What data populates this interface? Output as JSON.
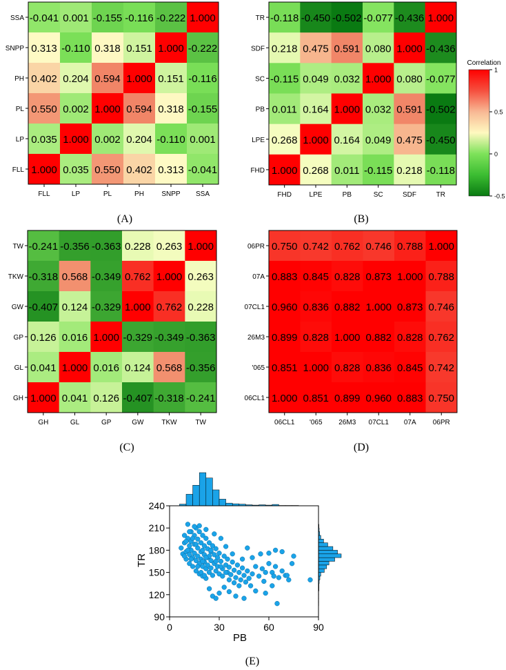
{
  "colors": {
    "scale_min": "#0a7a12",
    "scale_low": "#7ee25a",
    "scale_zero": "#ffffc8",
    "scale_high": "#f07a5e",
    "scale_max": "#ff0000",
    "scatter_point": "#1aa3e8",
    "histogram": "#1aa3e8"
  },
  "colorbar": {
    "title": "Correlation",
    "ticks": [
      "1",
      "0.5",
      "0",
      "-0.5"
    ],
    "tick_values": [
      1,
      0.5,
      0,
      -0.5
    ]
  },
  "chart_data": [
    {
      "type": "heatmap",
      "id": "A",
      "caption": "(A)",
      "x_labels": [
        "FLL",
        "LP",
        "PL",
        "PH",
        "SNPP",
        "SSA"
      ],
      "y_labels_top_to_bottom": [
        "SSA",
        "SNPP",
        "PH",
        "PL",
        "LP",
        "FLL"
      ],
      "values": [
        [
          "-0.041",
          "0.001",
          "-0.155",
          "-0.116",
          "-0.222",
          "1.000"
        ],
        [
          "0.313",
          "-0.110",
          "0.318",
          "0.151",
          "1.000",
          "-0.222"
        ],
        [
          "0.402",
          "0.204",
          "0.594",
          "1.000",
          "0.151",
          "-0.116"
        ],
        [
          "0.550",
          "0.002",
          "1.000",
          "0.594",
          "0.318",
          "-0.155"
        ],
        [
          "0.035",
          "1.000",
          "0.002",
          "0.204",
          "-0.110",
          "0.001"
        ],
        [
          "1.000",
          "0.035",
          "0.550",
          "0.402",
          "0.313",
          "-0.041"
        ]
      ]
    },
    {
      "type": "heatmap",
      "id": "B",
      "caption": "(B)",
      "x_labels": [
        "FHD",
        "LPE",
        "PB",
        "SC",
        "SDF",
        "TR"
      ],
      "y_labels_top_to_bottom": [
        "TR",
        "SDF",
        "SC",
        "PB",
        "LPE",
        "FHD"
      ],
      "values": [
        [
          "-0.118",
          "-0.450",
          "-0.502",
          "-0.077",
          "-0.436",
          "1.000"
        ],
        [
          "0.218",
          "0.475",
          "0.591",
          "0.080",
          "1.000",
          "-0.436"
        ],
        [
          "-0.115",
          "0.049",
          "0.032",
          "1.000",
          "0.080",
          "-0.077"
        ],
        [
          "0.011",
          "0.164",
          "1.000",
          "0.032",
          "0.591",
          "-0.502"
        ],
        [
          "0.268",
          "1.000",
          "0.164",
          "0.049",
          "0.475",
          "-0.450"
        ],
        [
          "1.000",
          "0.268",
          "0.011",
          "-0.115",
          "0.218",
          "-0.118"
        ]
      ]
    },
    {
      "type": "heatmap",
      "id": "C",
      "caption": "(C)",
      "x_labels": [
        "GH",
        "GL",
        "GP",
        "GW",
        "TKW",
        "TW"
      ],
      "y_labels_top_to_bottom": [
        "TW",
        "TKW",
        "GW",
        "GP",
        "GL",
        "GH"
      ],
      "values": [
        [
          "-0.241",
          "-0.356",
          "-0.363",
          "0.228",
          "0.263",
          "1.000"
        ],
        [
          "-0.318",
          "0.568",
          "-0.349",
          "0.762",
          "1.000",
          "0.263"
        ],
        [
          "-0.407",
          "0.124",
          "-0.329",
          "1.000",
          "0.762",
          "0.228"
        ],
        [
          "0.126",
          "0.016",
          "1.000",
          "-0.329",
          "-0.349",
          "-0.363"
        ],
        [
          "0.041",
          "1.000",
          "0.016",
          "0.124",
          "0.568",
          "-0.356"
        ],
        [
          "1.000",
          "0.041",
          "0.126",
          "-0.407",
          "-0.318",
          "-0.241"
        ]
      ]
    },
    {
      "type": "heatmap",
      "id": "D",
      "caption": "(D)",
      "x_labels": [
        "06CL1",
        "'065",
        "26M3",
        "07CL1",
        "07A",
        "06PR"
      ],
      "y_labels_top_to_bottom": [
        "06PR",
        "07A",
        "07CL1",
        "26M3",
        "'065",
        "06CL1"
      ],
      "values": [
        [
          "0.750",
          "0.742",
          "0.762",
          "0.746",
          "0.788",
          "1.000"
        ],
        [
          "0.883",
          "0.845",
          "0.828",
          "0.873",
          "1.000",
          "0.788"
        ],
        [
          "0.960",
          "0.836",
          "0.882",
          "1.000",
          "0.873",
          "0.746"
        ],
        [
          "0.899",
          "0.828",
          "1.000",
          "0.882",
          "0.828",
          "0.762"
        ],
        [
          "0.851",
          "1.000",
          "0.828",
          "0.836",
          "0.845",
          "0.742"
        ],
        [
          "1.000",
          "0.851",
          "0.899",
          "0.960",
          "0.883",
          "0.750"
        ]
      ]
    },
    {
      "type": "scatter",
      "id": "E",
      "caption": "(E)",
      "xlabel": "PB",
      "ylabel": "TR",
      "xlim": [
        0,
        90
      ],
      "ylim": [
        90,
        240
      ],
      "x_ticks": [
        "0",
        "30",
        "60",
        "90"
      ],
      "x_tick_values": [
        0,
        30,
        60,
        90
      ],
      "y_ticks": [
        "90",
        "120",
        "150",
        "180",
        "210",
        "240"
      ],
      "y_tick_values": [
        90,
        120,
        150,
        180,
        210,
        240
      ],
      "x_hist_bin_edges": [
        6,
        10,
        14,
        18,
        22,
        26,
        30,
        34,
        38,
        42,
        46,
        50,
        54,
        58,
        62,
        66,
        70,
        74,
        78
      ],
      "x_hist_counts": [
        5,
        35,
        62,
        100,
        84,
        48,
        20,
        8,
        6,
        5,
        3,
        2,
        3,
        2,
        4,
        1,
        1,
        1
      ],
      "y_hist_bin_edges": [
        105,
        110,
        115,
        120,
        125,
        130,
        135,
        140,
        145,
        150,
        155,
        160,
        165,
        170,
        175,
        180,
        185,
        190,
        195,
        200,
        205,
        210,
        215
      ],
      "y_hist_counts": [
        1,
        1,
        1,
        1,
        2,
        2,
        3,
        6,
        10,
        25,
        35,
        45,
        70,
        98,
        82,
        62,
        40,
        22,
        10,
        5,
        3,
        2
      ],
      "points": [
        [
          7,
          183
        ],
        [
          8,
          175
        ],
        [
          9,
          190
        ],
        [
          9,
          200
        ],
        [
          10,
          178
        ],
        [
          10,
          168
        ],
        [
          11,
          215
        ],
        [
          11,
          196
        ],
        [
          12,
          186
        ],
        [
          12,
          174
        ],
        [
          12,
          162
        ],
        [
          13,
          205
        ],
        [
          13,
          192
        ],
        [
          13,
          180
        ],
        [
          14,
          170
        ],
        [
          14,
          158
        ],
        [
          15,
          200
        ],
        [
          15,
          188
        ],
        [
          15,
          176
        ],
        [
          16,
          166
        ],
        [
          16,
          152
        ],
        [
          16,
          210
        ],
        [
          17,
          195
        ],
        [
          17,
          183
        ],
        [
          17,
          172
        ],
        [
          18,
          162
        ],
        [
          18,
          148
        ],
        [
          18,
          205
        ],
        [
          19,
          190
        ],
        [
          19,
          178
        ],
        [
          19,
          168
        ],
        [
          20,
          158
        ],
        [
          20,
          145
        ],
        [
          20,
          200
        ],
        [
          21,
          186
        ],
        [
          21,
          174
        ],
        [
          21,
          164
        ],
        [
          22,
          155
        ],
        [
          22,
          142
        ],
        [
          22,
          196
        ],
        [
          23,
          182
        ],
        [
          23,
          170
        ],
        [
          23,
          160
        ],
        [
          24,
          150
        ],
        [
          24,
          190
        ],
        [
          25,
          178
        ],
        [
          25,
          166
        ],
        [
          25,
          156
        ],
        [
          26,
          146
        ],
        [
          26,
          186
        ],
        [
          27,
          174
        ],
        [
          27,
          162
        ],
        [
          28,
          152
        ],
        [
          28,
          182
        ],
        [
          29,
          170
        ],
        [
          29,
          158
        ],
        [
          30,
          148
        ],
        [
          30,
          176
        ],
        [
          31,
          165
        ],
        [
          32,
          155
        ],
        [
          32,
          145
        ],
        [
          33,
          172
        ],
        [
          34,
          160
        ],
        [
          35,
          150
        ],
        [
          35,
          168
        ],
        [
          36,
          157
        ],
        [
          37,
          147
        ],
        [
          38,
          164
        ],
        [
          39,
          153
        ],
        [
          40,
          143
        ],
        [
          41,
          160
        ],
        [
          42,
          150
        ],
        [
          43,
          140
        ],
        [
          44,
          156
        ],
        [
          45,
          146
        ],
        [
          46,
          137
        ],
        [
          47,
          152
        ],
        [
          48,
          142
        ],
        [
          49,
          132
        ],
        [
          50,
          148
        ],
        [
          52,
          158
        ],
        [
          54,
          145
        ],
        [
          56,
          155
        ],
        [
          58,
          150
        ],
        [
          60,
          162
        ],
        [
          62,
          150
        ],
        [
          64,
          158
        ],
        [
          66,
          143
        ],
        [
          68,
          152
        ],
        [
          70,
          146
        ],
        [
          72,
          140
        ],
        [
          74,
          162
        ],
        [
          47,
          183
        ],
        [
          50,
          170
        ],
        [
          55,
          175
        ],
        [
          60,
          176
        ],
        [
          64,
          180
        ],
        [
          68,
          178
        ],
        [
          75,
          172
        ],
        [
          24,
          128
        ],
        [
          26,
          118
        ],
        [
          28,
          115
        ],
        [
          30,
          122
        ],
        [
          33,
          130
        ],
        [
          36,
          124
        ],
        [
          40,
          118
        ],
        [
          45,
          115
        ],
        [
          52,
          125
        ],
        [
          58,
          122
        ],
        [
          65,
          108
        ],
        [
          85,
          140
        ],
        [
          71,
          146
        ],
        [
          62,
          132
        ],
        [
          44,
          168
        ],
        [
          38,
          175
        ],
        [
          34,
          185
        ],
        [
          31,
          196
        ],
        [
          27,
          202
        ],
        [
          22,
          208
        ],
        [
          18,
          213
        ],
        [
          15,
          212
        ],
        [
          12,
          205
        ],
        [
          14,
          196
        ],
        [
          16,
          188
        ],
        [
          20,
          180
        ],
        [
          24,
          172
        ],
        [
          28,
          165
        ],
        [
          31,
          158
        ],
        [
          34,
          150
        ],
        [
          20,
          165
        ],
        [
          22,
          170
        ],
        [
          25,
          180
        ],
        [
          17,
          158
        ],
        [
          19,
          150
        ],
        [
          21,
          146
        ],
        [
          13,
          168
        ],
        [
          11,
          180
        ],
        [
          9,
          172
        ],
        [
          10,
          192
        ],
        [
          36,
          140
        ],
        [
          39,
          136
        ],
        [
          42,
          132
        ],
        [
          57,
          138
        ],
        [
          63,
          145
        ]
      ]
    }
  ]
}
